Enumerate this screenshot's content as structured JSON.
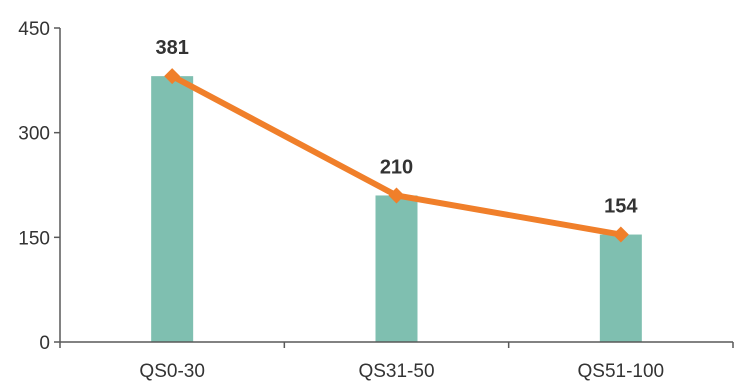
{
  "chart_data": {
    "type": "bar",
    "categories": [
      "QS0-30",
      "QS31-50",
      "QS51-100"
    ],
    "series": [
      {
        "type": "bar",
        "values": [
          381,
          210,
          154
        ],
        "color": "#7fbfb0"
      },
      {
        "type": "line",
        "values": [
          381,
          210,
          154
        ],
        "color": "#f07f2a"
      }
    ],
    "data_labels": [
      "381",
      "210",
      "154"
    ],
    "ylim": [
      0,
      450
    ],
    "yticks": [
      0,
      150,
      300,
      450
    ],
    "ytick_labels": [
      "0",
      "150",
      "300",
      "450"
    ],
    "title": "",
    "xlabel": "",
    "ylabel": "",
    "grid": false,
    "legend": "none"
  }
}
